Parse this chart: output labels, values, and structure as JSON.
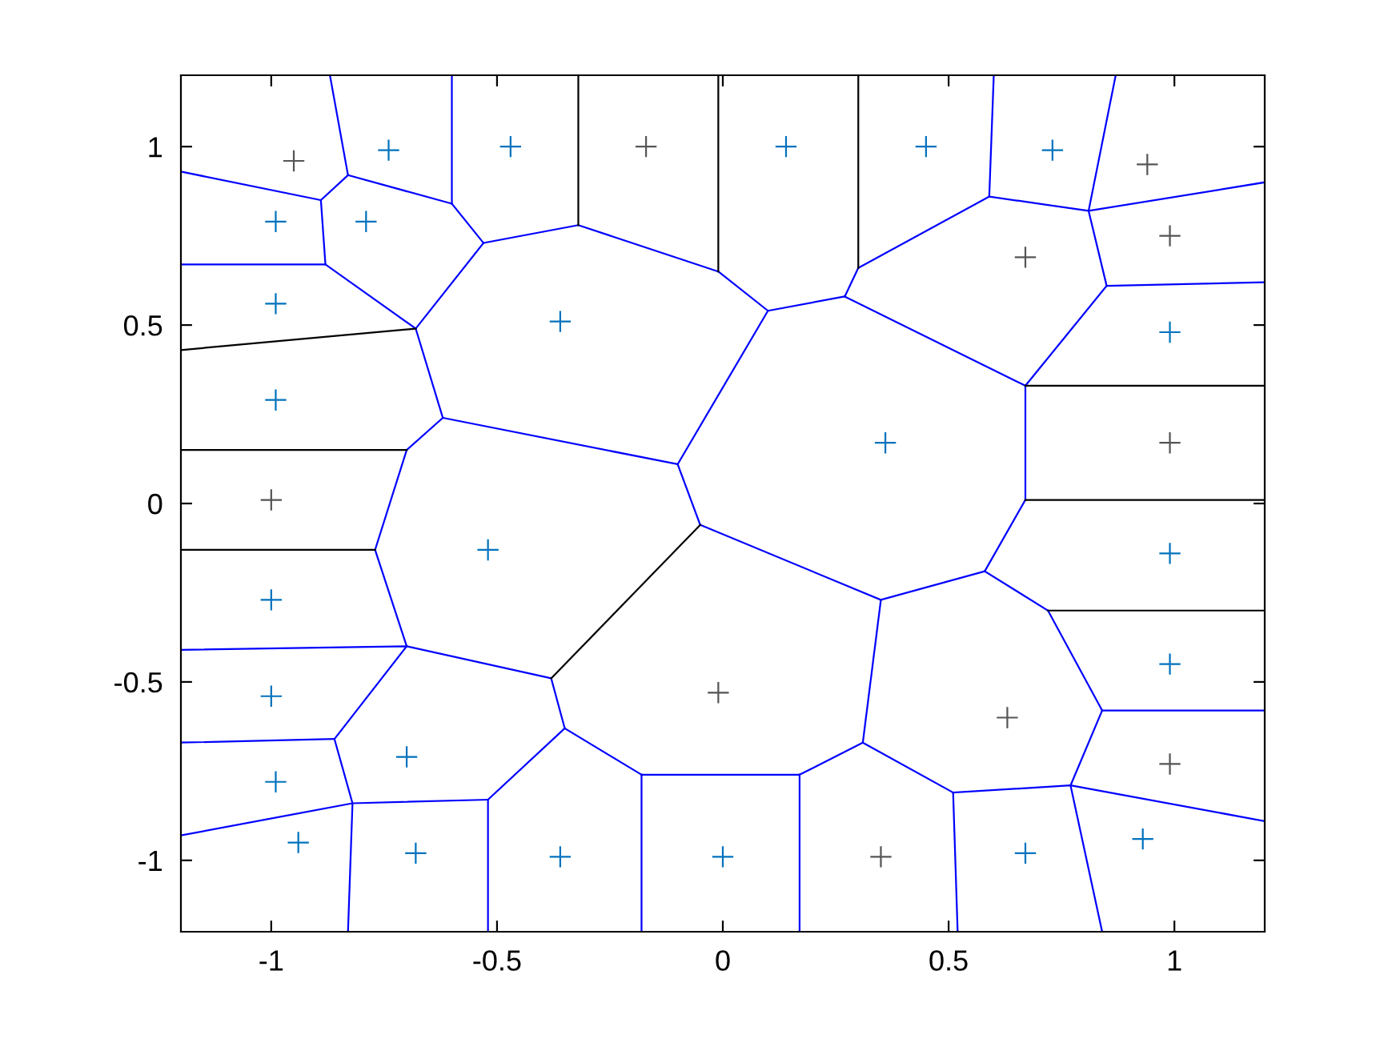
{
  "chart_data": {
    "type": "scatter",
    "xlim": [
      -1.2,
      1.2
    ],
    "ylim": [
      -1.2,
      1.2
    ],
    "xticks": [
      -1,
      -0.5,
      0,
      0.5,
      1
    ],
    "yticks": [
      -1,
      -0.5,
      0,
      0.5,
      1
    ],
    "grid": false,
    "series": [
      {
        "type": "line",
        "color": "#0000ff",
        "x": [
          -0.87,
          -0.83
        ],
        "values": [
          1.2,
          0.92
        ]
      },
      {
        "type": "line",
        "color": "#0000ff",
        "x": [
          -1.2,
          -0.89
        ],
        "values": [
          0.93,
          0.85
        ]
      },
      {
        "type": "line",
        "color": "#0000ff",
        "x": [
          -0.89,
          -0.83
        ],
        "values": [
          0.85,
          0.92
        ]
      },
      {
        "type": "line",
        "color": "#0000ff",
        "x": [
          -0.83,
          -0.6
        ],
        "values": [
          0.92,
          0.84
        ]
      },
      {
        "type": "line",
        "color": "#0000ff",
        "x": [
          -0.6,
          -0.6
        ],
        "values": [
          1.2,
          0.84
        ]
      },
      {
        "type": "line",
        "color": "#0000ff",
        "x": [
          -0.6,
          -0.53
        ],
        "values": [
          0.84,
          0.73
        ]
      },
      {
        "type": "line",
        "color": "#0000ff",
        "x": [
          -0.89,
          -0.88
        ],
        "values": [
          0.85,
          0.67
        ]
      },
      {
        "type": "line",
        "color": "#0000ff",
        "x": [
          -1.2,
          -0.88
        ],
        "values": [
          0.67,
          0.67
        ]
      },
      {
        "type": "line",
        "color": "#0000ff",
        "x": [
          -0.88,
          -0.68
        ],
        "values": [
          0.67,
          0.49
        ]
      },
      {
        "type": "line",
        "color": "#0000ff",
        "x": [
          -0.53,
          -0.68
        ],
        "values": [
          0.73,
          0.49
        ]
      },
      {
        "type": "line",
        "color": "#0000ff",
        "x": [
          -0.53,
          -0.32,
          -0.01,
          0.1,
          0.27
        ],
        "values": [
          0.73,
          0.78,
          0.65,
          0.54,
          0.58
        ]
      },
      {
        "type": "line",
        "color": "#0000ff",
        "x": [
          0.3,
          0.27
        ],
        "values": [
          0.66,
          0.58
        ]
      },
      {
        "type": "line",
        "color": "#0000ff",
        "x": [
          0.3,
          0.59
        ],
        "values": [
          0.66,
          0.86
        ]
      },
      {
        "type": "line",
        "color": "#0000ff",
        "x": [
          0.6,
          0.59
        ],
        "values": [
          1.2,
          0.86
        ]
      },
      {
        "type": "line",
        "color": "#0000ff",
        "x": [
          0.59,
          0.81,
          1.2
        ],
        "values": [
          0.86,
          0.82,
          0.9
        ]
      },
      {
        "type": "line",
        "color": "#0000ff",
        "x": [
          0.87,
          0.81,
          0.85
        ],
        "values": [
          1.2,
          0.82,
          0.61
        ]
      },
      {
        "type": "line",
        "color": "#0000ff",
        "x": [
          0.85,
          1.2
        ],
        "values": [
          0.61,
          0.62
        ]
      },
      {
        "type": "line",
        "color": "#0000ff",
        "x": [
          0.85,
          0.67
        ],
        "values": [
          0.61,
          0.33
        ]
      },
      {
        "type": "line",
        "color": "#0000ff",
        "x": [
          0.27,
          0.67
        ],
        "values": [
          0.58,
          0.33
        ]
      },
      {
        "type": "line",
        "color": "#0000ff",
        "x": [
          0.67,
          0.67
        ],
        "values": [
          0.33,
          0.01
        ]
      },
      {
        "type": "line",
        "color": "#0000ff",
        "x": [
          0.67,
          0.58
        ],
        "values": [
          0.01,
          -0.19
        ]
      },
      {
        "type": "line",
        "color": "#0000ff",
        "x": [
          0.58,
          0.72
        ],
        "values": [
          -0.19,
          -0.3
        ]
      },
      {
        "type": "line",
        "color": "#0000ff",
        "x": [
          0.72,
          0.84
        ],
        "values": [
          -0.3,
          -0.58
        ]
      },
      {
        "type": "line",
        "color": "#0000ff",
        "x": [
          0.84,
          1.2
        ],
        "values": [
          -0.58,
          -0.58
        ]
      },
      {
        "type": "line",
        "color": "#0000ff",
        "x": [
          0.84,
          0.77
        ],
        "values": [
          -0.58,
          -0.79
        ]
      },
      {
        "type": "line",
        "color": "#0000ff",
        "x": [
          0.77,
          0.84
        ],
        "values": [
          -0.79,
          -1.2
        ]
      },
      {
        "type": "line",
        "color": "#0000ff",
        "x": [
          0.51,
          0.77,
          1.2
        ],
        "values": [
          -0.81,
          -0.79,
          -0.89
        ]
      },
      {
        "type": "line",
        "color": "#0000ff",
        "x": [
          0.51,
          0.52
        ],
        "values": [
          -0.81,
          -1.2
        ]
      },
      {
        "type": "line",
        "color": "#0000ff",
        "x": [
          0.51,
          0.31
        ],
        "values": [
          -0.81,
          -0.67
        ]
      },
      {
        "type": "line",
        "color": "#0000ff",
        "x": [
          0.31,
          0.35
        ],
        "values": [
          -0.67,
          -0.27
        ]
      },
      {
        "type": "line",
        "color": "#0000ff",
        "x": [
          0.35,
          0.58
        ],
        "values": [
          -0.27,
          -0.19
        ]
      },
      {
        "type": "line",
        "color": "#0000ff",
        "x": [
          0.35,
          -0.05
        ],
        "values": [
          -0.27,
          -0.06
        ]
      },
      {
        "type": "line",
        "color": "#0000ff",
        "x": [
          -0.05,
          -0.1
        ],
        "values": [
          -0.06,
          0.11
        ]
      },
      {
        "type": "line",
        "color": "#0000ff",
        "x": [
          -0.1,
          0.1
        ],
        "values": [
          0.11,
          0.54
        ]
      },
      {
        "type": "line",
        "color": "#0000ff",
        "x": [
          -0.1,
          -0.62
        ],
        "values": [
          0.11,
          0.24
        ]
      },
      {
        "type": "line",
        "color": "#0000ff",
        "x": [
          -0.62,
          -0.68
        ],
        "values": [
          0.24,
          0.49
        ]
      },
      {
        "type": "line",
        "color": "#0000ff",
        "x": [
          -0.62,
          -0.7
        ],
        "values": [
          0.24,
          0.15
        ]
      },
      {
        "type": "line",
        "color": "#0000ff",
        "x": [
          -0.7,
          -0.77
        ],
        "values": [
          0.15,
          -0.13
        ]
      },
      {
        "type": "line",
        "color": "#0000ff",
        "x": [
          -0.77,
          -0.7
        ],
        "values": [
          -0.13,
          -0.4
        ]
      },
      {
        "type": "line",
        "color": "#0000ff",
        "x": [
          -1.2,
          -0.7,
          -0.38
        ],
        "values": [
          -0.41,
          -0.4,
          -0.49
        ]
      },
      {
        "type": "line",
        "color": "#0000ff",
        "x": [
          -0.38,
          -0.35
        ],
        "values": [
          -0.49,
          -0.63
        ]
      },
      {
        "type": "line",
        "color": "#0000ff",
        "x": [
          -0.7,
          -0.86
        ],
        "values": [
          -0.4,
          -0.66
        ]
      },
      {
        "type": "line",
        "color": "#0000ff",
        "x": [
          -0.86,
          -1.2
        ],
        "values": [
          -0.66,
          -0.67
        ]
      },
      {
        "type": "line",
        "color": "#0000ff",
        "x": [
          -0.86,
          -0.82,
          -0.83
        ],
        "values": [
          -0.66,
          -0.84,
          -1.2
        ]
      },
      {
        "type": "line",
        "color": "#0000ff",
        "x": [
          -1.2,
          -0.82,
          -0.52
        ],
        "values": [
          -0.93,
          -0.84,
          -0.83
        ]
      },
      {
        "type": "line",
        "color": "#0000ff",
        "x": [
          -0.52,
          -0.52
        ],
        "values": [
          -0.83,
          -1.2
        ]
      },
      {
        "type": "line",
        "color": "#0000ff",
        "x": [
          -0.52,
          -0.35
        ],
        "values": [
          -0.83,
          -0.63
        ]
      },
      {
        "type": "line",
        "color": "#0000ff",
        "x": [
          -0.35,
          -0.18
        ],
        "values": [
          -0.63,
          -0.76
        ]
      },
      {
        "type": "line",
        "color": "#0000ff",
        "x": [
          -0.18,
          -0.18
        ],
        "values": [
          -0.76,
          -1.2
        ]
      },
      {
        "type": "line",
        "color": "#0000ff",
        "x": [
          -0.18,
          0.17
        ],
        "values": [
          -0.76,
          -0.76
        ]
      },
      {
        "type": "line",
        "color": "#0000ff",
        "x": [
          0.17,
          0.17
        ],
        "values": [
          -0.76,
          -1.2
        ]
      },
      {
        "type": "line",
        "color": "#0000ff",
        "x": [
          0.17,
          0.31
        ],
        "values": [
          -0.76,
          -0.67
        ]
      },
      {
        "type": "line",
        "color": "#000000",
        "x": [
          -0.32,
          -0.32
        ],
        "values": [
          1.2,
          0.78
        ]
      },
      {
        "type": "line",
        "color": "#000000",
        "x": [
          -0.01,
          -0.01
        ],
        "values": [
          1.2,
          0.65
        ]
      },
      {
        "type": "line",
        "color": "#000000",
        "x": [
          0.3,
          0.3
        ],
        "values": [
          1.2,
          0.66
        ]
      },
      {
        "type": "line",
        "color": "#000000",
        "x": [
          0.67,
          1.2
        ],
        "values": [
          0.33,
          0.33
        ]
      },
      {
        "type": "line",
        "color": "#000000",
        "x": [
          0.67,
          1.2
        ],
        "values": [
          0.01,
          0.01
        ]
      },
      {
        "type": "line",
        "color": "#000000",
        "x": [
          0.72,
          1.2
        ],
        "values": [
          -0.3,
          -0.3
        ]
      },
      {
        "type": "line",
        "color": "#000000",
        "x": [
          -0.05,
          -0.38
        ],
        "values": [
          -0.06,
          -0.49
        ]
      },
      {
        "type": "line",
        "color": "#000000",
        "x": [
          -0.68,
          -1.2
        ],
        "values": [
          0.49,
          0.43
        ]
      },
      {
        "type": "line",
        "color": "#000000",
        "x": [
          -0.7,
          -1.2
        ],
        "values": [
          0.15,
          0.15
        ]
      },
      {
        "type": "line",
        "color": "#000000",
        "x": [
          -0.77,
          -1.2
        ],
        "values": [
          -0.13,
          -0.13
        ]
      },
      {
        "type": "scatter",
        "color": "#0072bd",
        "marker": "cross",
        "x": [
          -0.74,
          -0.47,
          0.14,
          0.45,
          0.73,
          -0.99,
          -0.79,
          -0.99,
          -0.99,
          -1,
          -1,
          -0.99,
          -0.94,
          -0.68,
          -0.36,
          0,
          0.67,
          0.93,
          0.99,
          0.99,
          0.99,
          -0.36,
          0.36,
          -0.52,
          -0.7
        ],
        "values": [
          0.99,
          1.0,
          1.0,
          1.0,
          0.99,
          0.79,
          0.79,
          0.56,
          0.29,
          -0.27,
          -0.54,
          -0.78,
          -0.95,
          -0.98,
          -0.99,
          -0.99,
          -0.98,
          -0.94,
          0.48,
          -0.14,
          -0.45,
          0.51,
          0.17,
          -0.13,
          -0.71
        ]
      },
      {
        "type": "scatter",
        "color": "#555555",
        "marker": "cross",
        "x": [
          -0.95,
          -0.17,
          0.94,
          0.99,
          0.67,
          0.99,
          -1,
          0.99,
          -0.01,
          0.63,
          0.35
        ],
        "values": [
          0.96,
          1.0,
          0.95,
          0.75,
          0.69,
          0.17,
          0.01,
          -0.73,
          -0.53,
          -0.6,
          -0.99
        ]
      }
    ]
  }
}
